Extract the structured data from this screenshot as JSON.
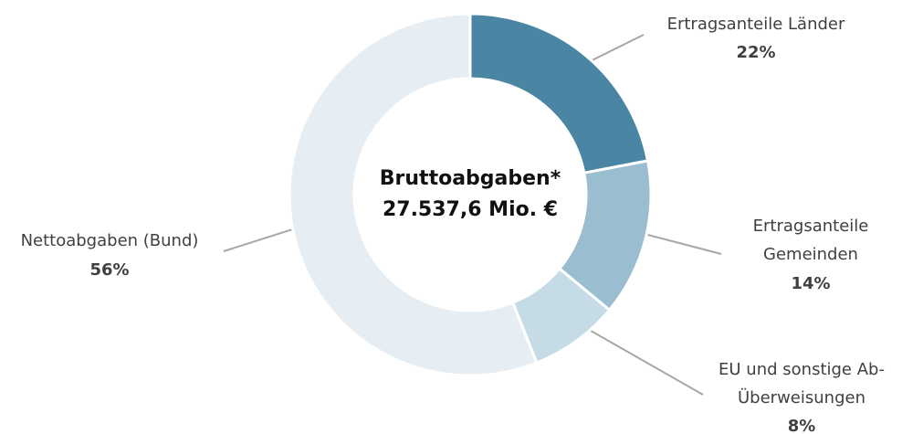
{
  "chart_data": {
    "type": "pie",
    "center_text": [
      "Bruttoabgaben*",
      "27.537,6 Mio. €"
    ],
    "categories": [
      "Ertragsanteile Länder",
      "Ertragsanteile\nGemeinden",
      "EU und sonstige Ab-\nÜberweisungen",
      "Nettoabgaben (Bund)"
    ],
    "values": [
      22,
      14,
      8,
      56
    ],
    "value_labels": [
      "22%",
      "14%",
      "8%",
      "56%"
    ],
    "colors": [
      "#4a86a3",
      "#9bbdd0",
      "#c5dbe6",
      "#e6eef4"
    ]
  }
}
